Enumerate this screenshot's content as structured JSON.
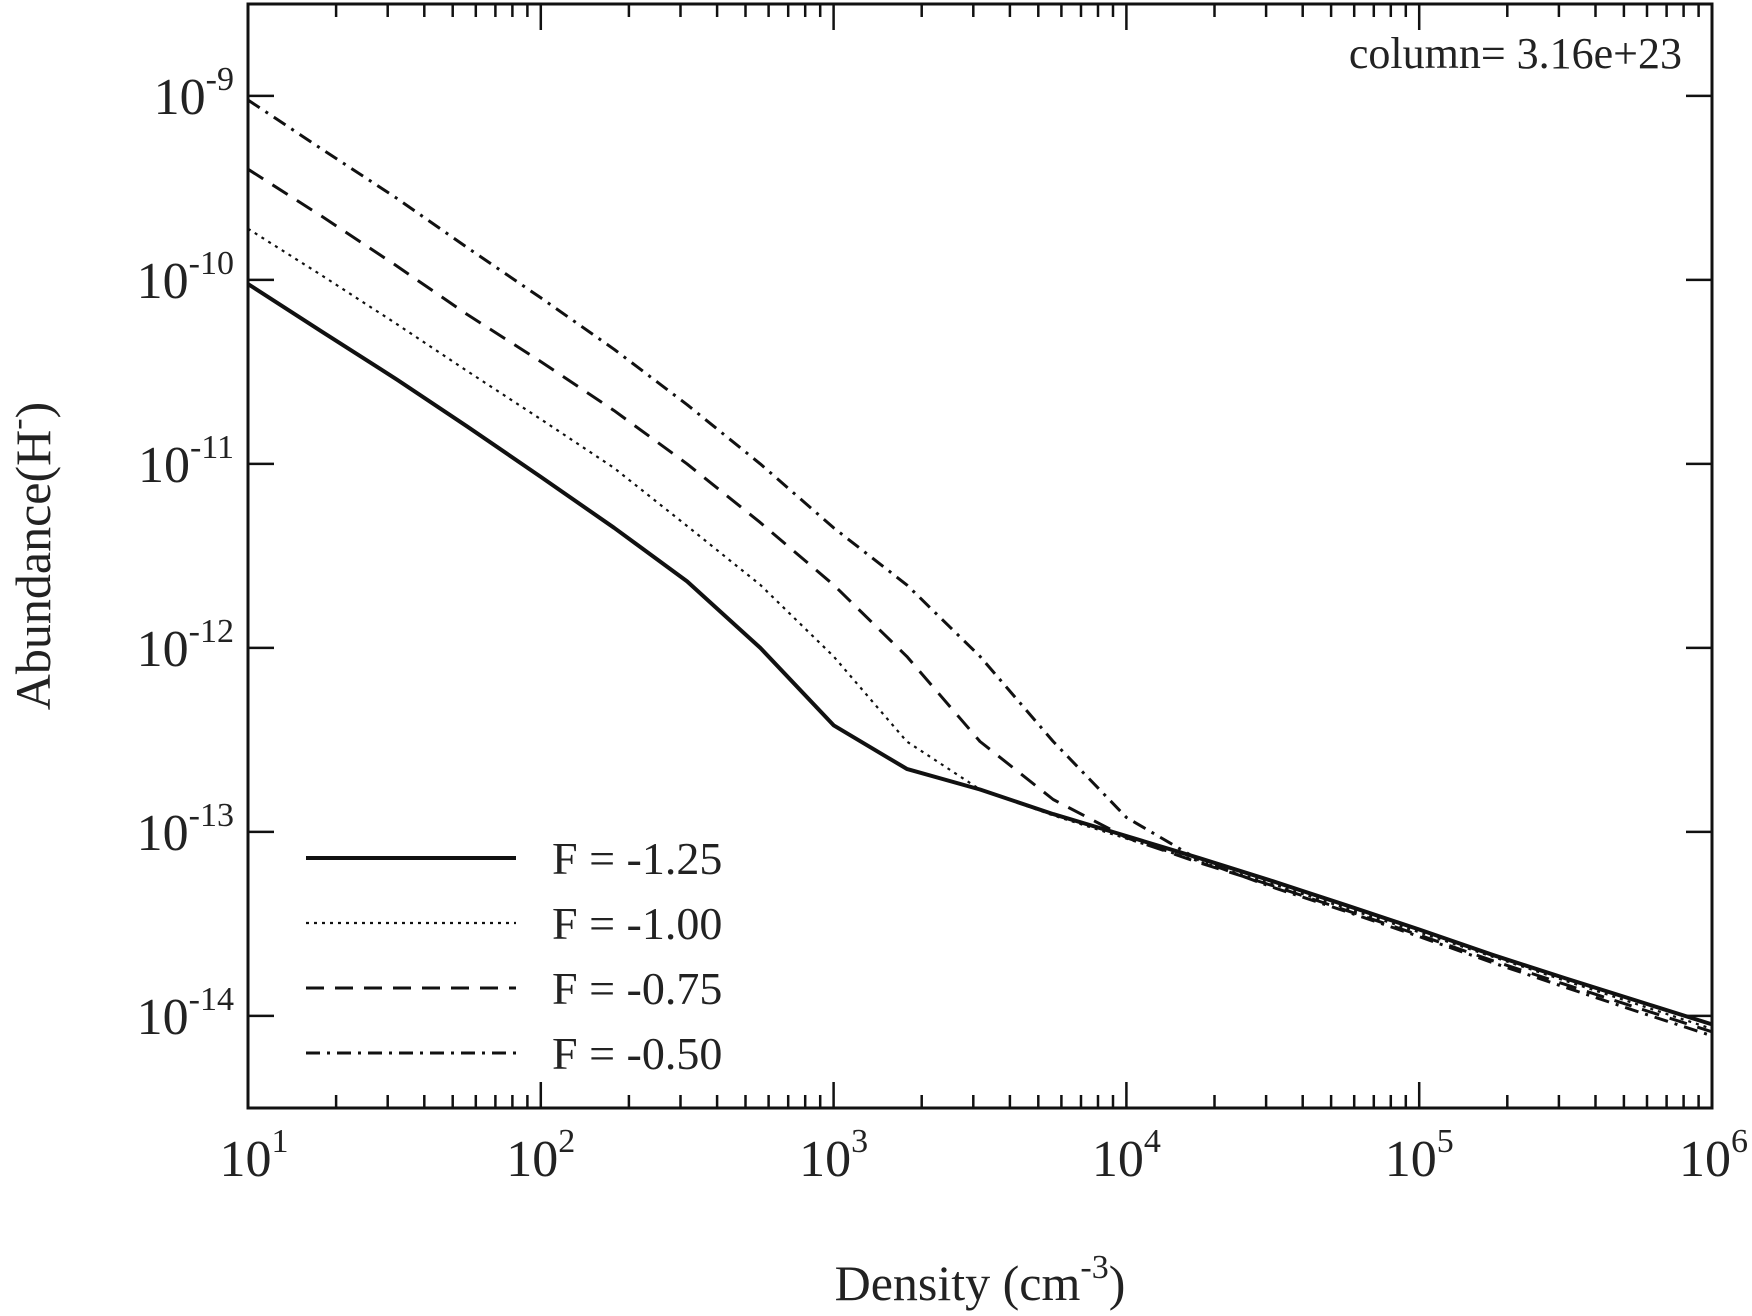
{
  "chart_data": {
    "type": "line",
    "title": "",
    "xlabel": "Density (cm",
    "xlabel_sup": "-3",
    "xlabel_close": ")",
    "ylabel": "Abundance(H",
    "ylabel_sup": "-",
    "ylabel_close": ")",
    "xscale": "log",
    "yscale": "log",
    "xlim": [
      10,
      1000000
    ],
    "ylim": [
      3.16e-15,
      3.16e-09
    ],
    "x_ticks": [
      {
        "value": 10,
        "base": "10",
        "exp": "1"
      },
      {
        "value": 100,
        "base": "10",
        "exp": "2"
      },
      {
        "value": 1000,
        "base": "10",
        "exp": "3"
      },
      {
        "value": 10000,
        "base": "10",
        "exp": "4"
      },
      {
        "value": 100000,
        "base": "10",
        "exp": "5"
      },
      {
        "value": 1000000,
        "base": "10",
        "exp": "6"
      }
    ],
    "y_ticks": [
      {
        "value": 1e-14,
        "base": "10",
        "exp": "-14"
      },
      {
        "value": 1e-13,
        "base": "10",
        "exp": "-13"
      },
      {
        "value": 1e-12,
        "base": "10",
        "exp": "-12"
      },
      {
        "value": 1e-11,
        "base": "10",
        "exp": "-11"
      },
      {
        "value": 1e-10,
        "base": "10",
        "exp": "-10"
      },
      {
        "value": 1e-09,
        "base": "10",
        "exp": "-9"
      }
    ],
    "annotation": "column= 3.16e+23",
    "legend_position": "bottom-left",
    "series": [
      {
        "name": "F = -1.25",
        "dash": "solid",
        "x": [
          10,
          18,
          32,
          56,
          100,
          178,
          316,
          562,
          1000,
          1778,
          3162,
          5623,
          10000,
          17783,
          31623,
          56234,
          100000,
          177828,
          316228,
          562341,
          1000000
        ],
        "y": [
          9.5e-11,
          5.2e-11,
          2.9e-11,
          1.6e-11,
          8.5e-12,
          4.5e-12,
          2.3e-12,
          1e-12,
          3.8e-13,
          2.2e-13,
          1.7e-13,
          1.25e-13,
          9.5e-14,
          7.2e-14,
          5.4e-14,
          4e-14,
          2.95e-14,
          2.15e-14,
          1.6e-14,
          1.2e-14,
          9e-15
        ]
      },
      {
        "name": "F = -1.00",
        "dash": "dotted",
        "x": [
          10,
          18,
          32,
          56,
          100,
          178,
          316,
          562,
          1000,
          1778,
          3162,
          5623,
          10000,
          17783,
          31623,
          56234,
          100000,
          177828,
          316228,
          562341,
          1000000
        ],
        "y": [
          1.9e-10,
          1.05e-10,
          5.8e-11,
          3.2e-11,
          1.75e-11,
          9.5e-12,
          4.6e-12,
          2.2e-12,
          9e-13,
          3.1e-13,
          1.7e-13,
          1.23e-13,
          9.2e-14,
          6.9e-14,
          5.2e-14,
          3.85e-14,
          2.85e-14,
          2.1e-14,
          1.55e-14,
          1.15e-14,
          8.5e-15
        ]
      },
      {
        "name": "F = -0.75",
        "dash": "dashed",
        "x": [
          10,
          18,
          32,
          56,
          100,
          178,
          316,
          562,
          1000,
          1778,
          3162,
          5623,
          10000,
          17783,
          31623,
          56234,
          100000,
          177828,
          316228,
          562341,
          1000000
        ],
        "y": [
          4e-10,
          2.2e-10,
          1.2e-10,
          6.5e-11,
          3.6e-11,
          1.95e-11,
          1e-11,
          4.8e-12,
          2.2e-12,
          9e-13,
          3.1e-13,
          1.5e-13,
          9.3e-14,
          6.8e-14,
          5.1e-14,
          3.75e-14,
          2.75e-14,
          2e-14,
          1.48e-14,
          1.1e-14,
          8.2e-15
        ]
      },
      {
        "name": "F = -0.50",
        "dash": "dashdot",
        "x": [
          10,
          18,
          32,
          56,
          100,
          178,
          316,
          562,
          1000,
          1778,
          3162,
          5623,
          10000,
          17783,
          31623,
          56234,
          100000,
          177828,
          316228,
          562341,
          1000000
        ],
        "y": [
          9.5e-10,
          5.1e-10,
          2.8e-10,
          1.5e-10,
          8e-11,
          4.2e-11,
          2.1e-11,
          1e-11,
          4.5e-12,
          2.2e-12,
          9e-13,
          3.1e-13,
          1.2e-13,
          7e-14,
          5e-14,
          3.7e-14,
          2.7e-14,
          1.95e-14,
          1.43e-14,
          1.05e-14,
          7.8e-15
        ]
      }
    ]
  }
}
